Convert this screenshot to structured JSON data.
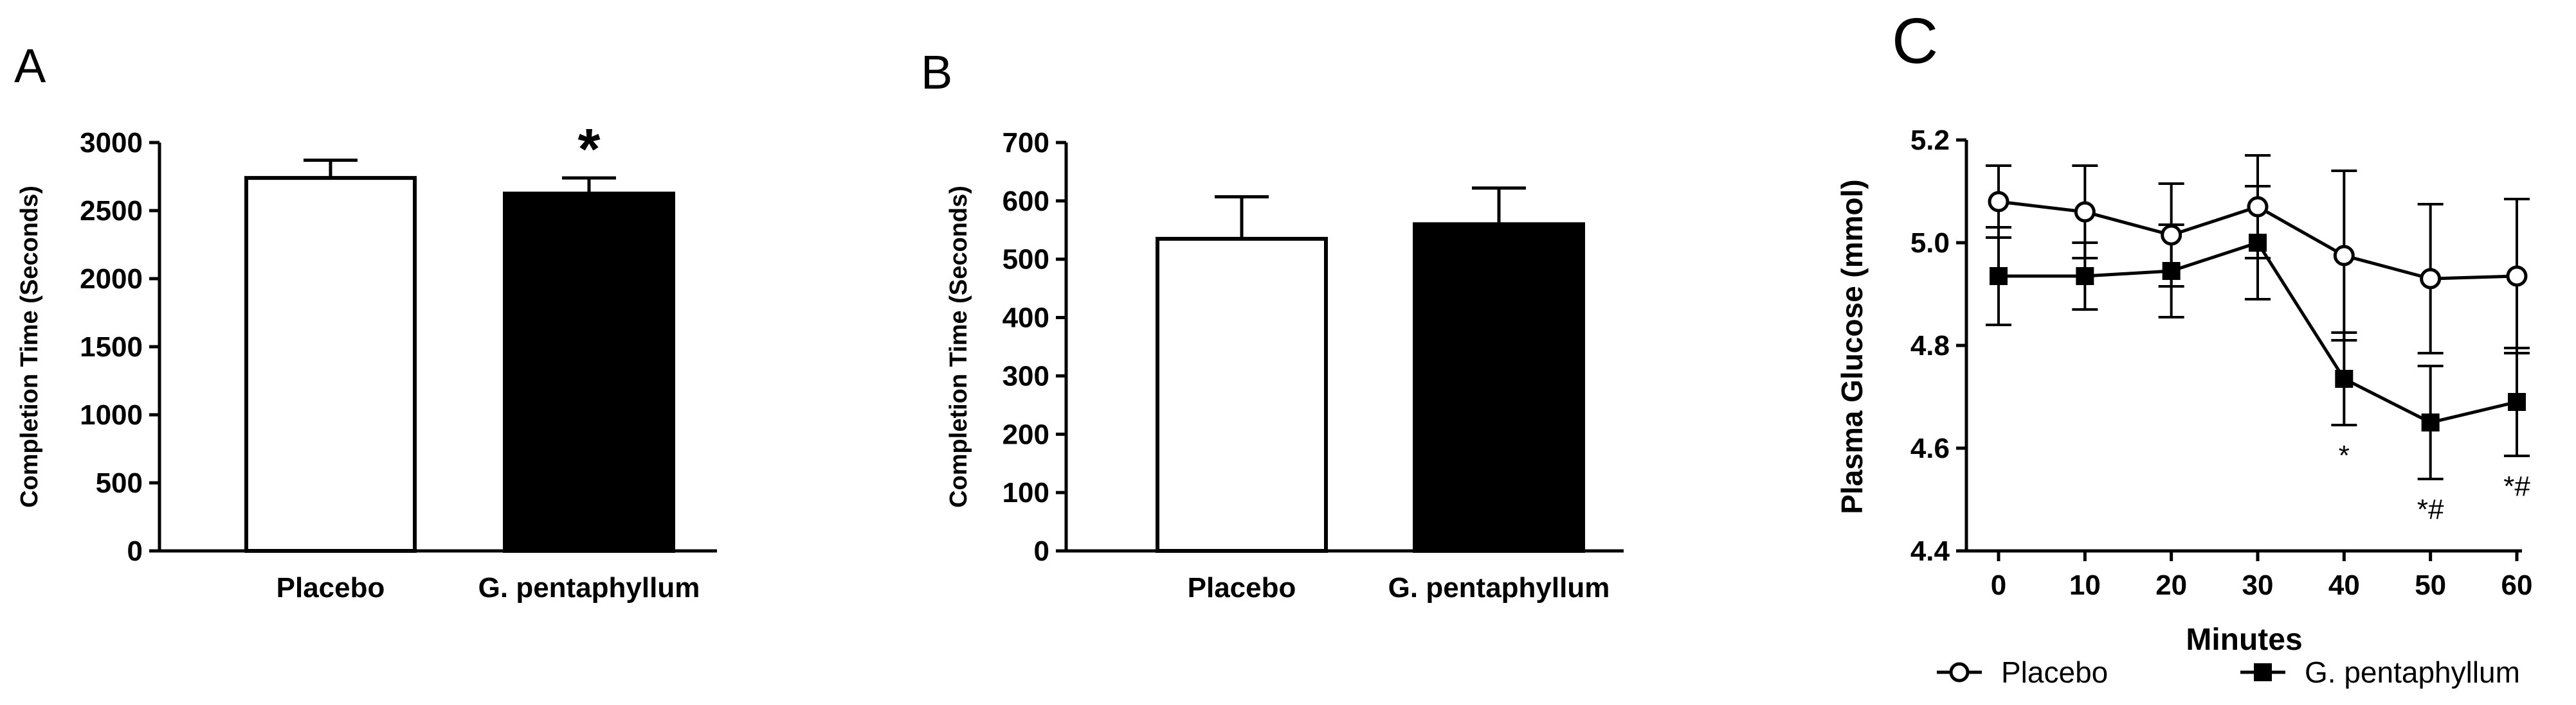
{
  "chart_data": [
    {
      "panel": "A",
      "type": "bar",
      "categories": [
        "Placebo",
        "G. pentaphyllum"
      ],
      "values": [
        2740,
        2625
      ],
      "errors": [
        130,
        115
      ],
      "bar_colors": [
        "#ffffff",
        "#000000"
      ],
      "annotations": [
        "",
        "*"
      ],
      "ylabel": "Completion Time (Seconds)",
      "ylim": [
        0,
        3000
      ],
      "yticks": [
        "0",
        "500",
        "1000",
        "1500",
        "2000",
        "2500",
        "3000"
      ]
    },
    {
      "panel": "B",
      "type": "bar",
      "categories": [
        "Placebo",
        "G. pentaphyllum"
      ],
      "values": [
        535,
        560
      ],
      "errors": [
        72,
        62
      ],
      "bar_colors": [
        "#ffffff",
        "#000000"
      ],
      "annotations": [
        "",
        ""
      ],
      "ylabel": "Completion Time (Seconds)",
      "ylim": [
        0,
        700
      ],
      "yticks": [
        "0",
        "100",
        "200",
        "300",
        "400",
        "500",
        "600",
        "700"
      ]
    },
    {
      "panel": "C",
      "type": "line",
      "x": [
        0,
        10,
        20,
        30,
        40,
        50,
        60
      ],
      "xticks": [
        "0",
        "10",
        "20",
        "30",
        "40",
        "50",
        "60"
      ],
      "xlabel": "Minutes",
      "ylabel": "Plasma Glucose (mmol)",
      "ylim": [
        4.4,
        5.2
      ],
      "yticks": [
        "4.4",
        "4.6",
        "4.8",
        "5.0",
        "5.2"
      ],
      "series": [
        {
          "name": "Placebo",
          "marker": "open-circle",
          "values": [
            5.08,
            5.06,
            5.015,
            5.07,
            4.975,
            4.93,
            4.935
          ],
          "errors": [
            0.07,
            0.09,
            0.1,
            0.1,
            0.165,
            0.145,
            0.15
          ]
        },
        {
          "name": "G. pentaphyllum",
          "marker": "filled-square",
          "values": [
            4.935,
            4.935,
            4.945,
            5.0,
            4.735,
            4.65,
            4.69
          ],
          "errors": [
            0.095,
            0.065,
            0.09,
            0.11,
            0.09,
            0.11,
            0.105
          ]
        }
      ],
      "annotations": [
        {
          "x": 40,
          "text": "*"
        },
        {
          "x": 50,
          "text": "*#"
        },
        {
          "x": 60,
          "text": "*#"
        }
      ]
    }
  ]
}
